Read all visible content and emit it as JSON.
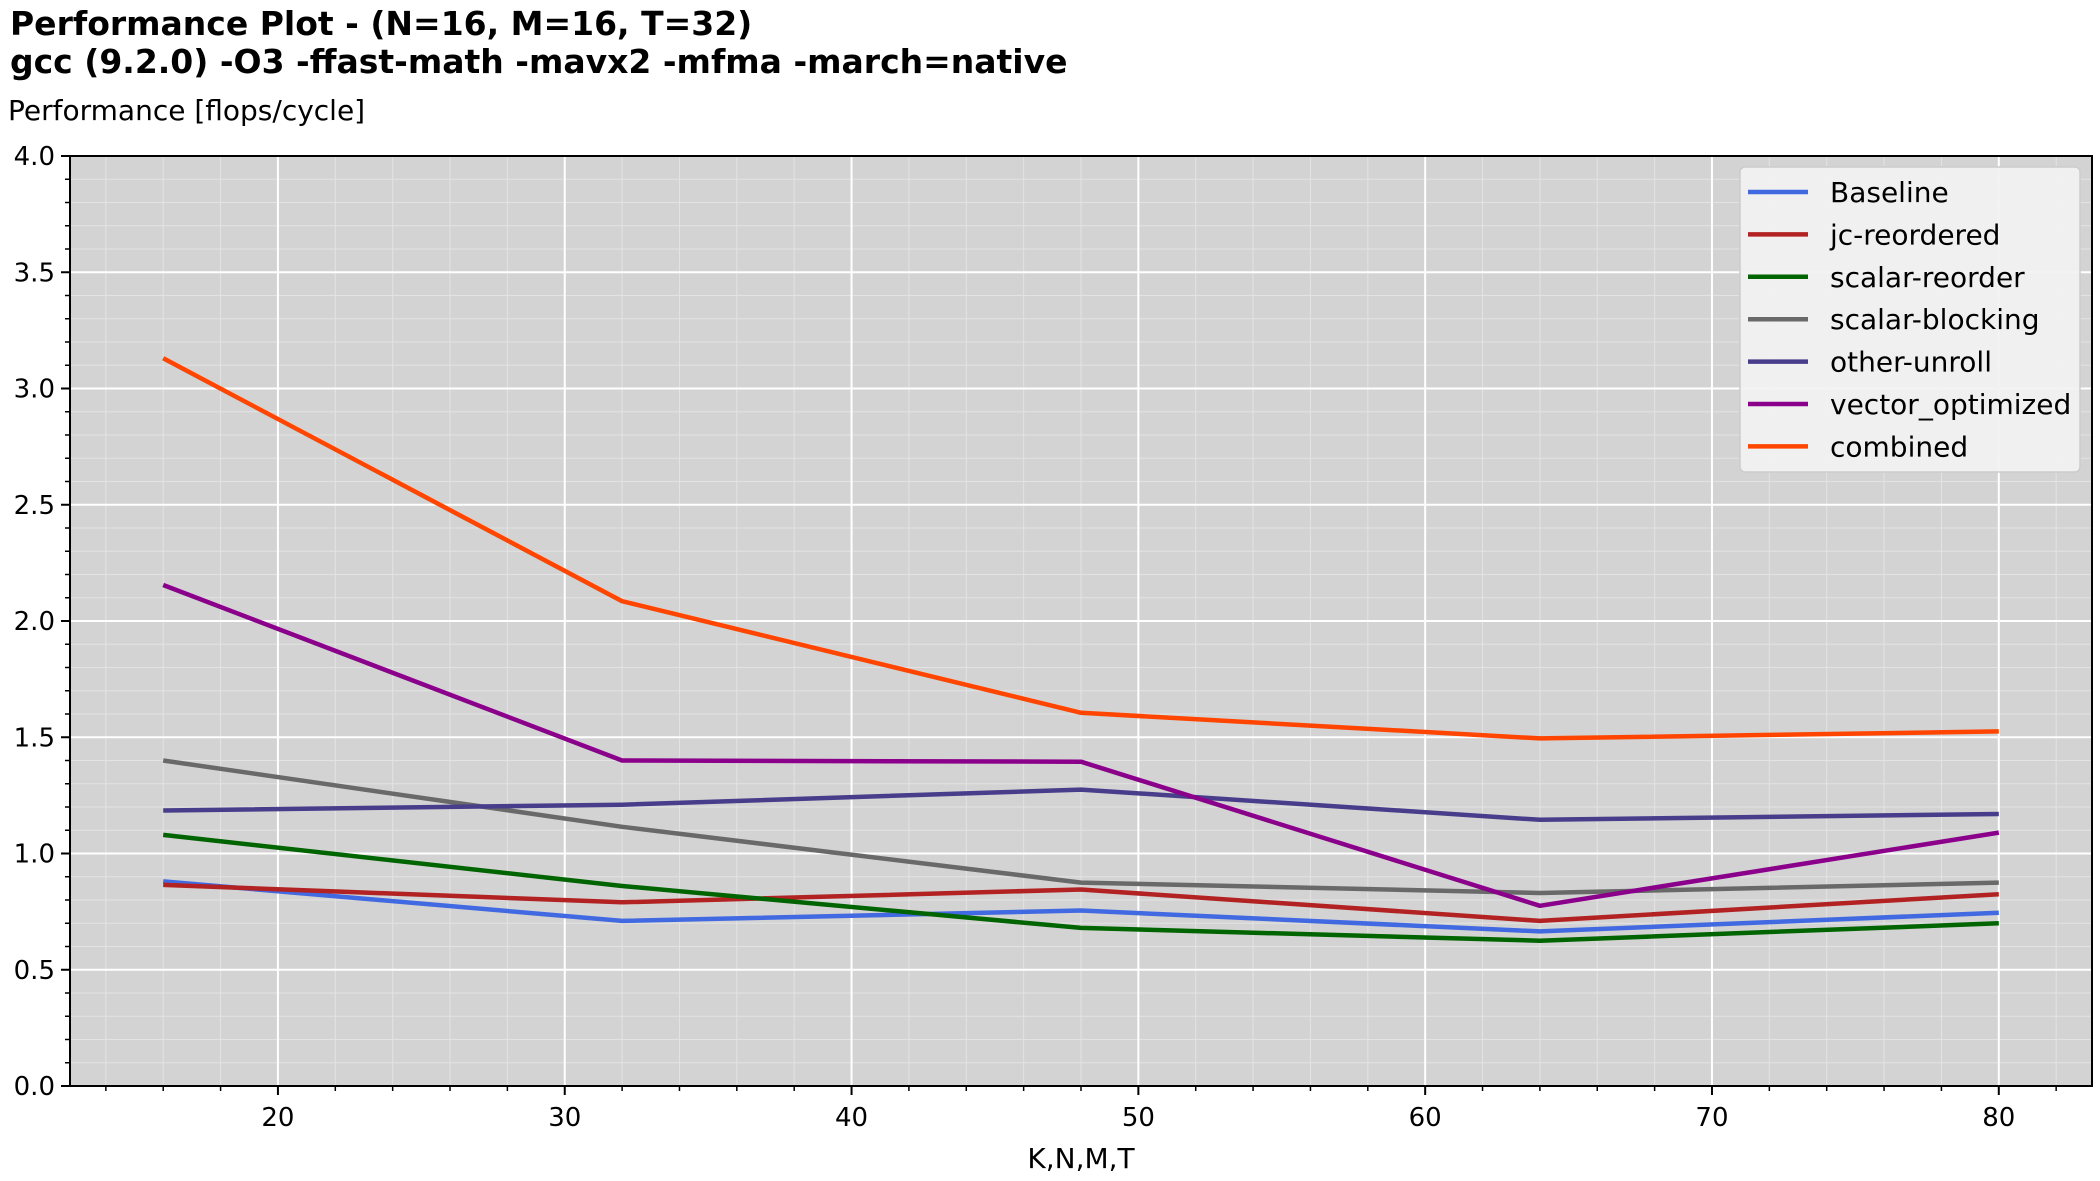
{
  "chart_data": {
    "type": "line",
    "title": "Performance Plot  -  (N=16, M=16, T=32)",
    "subtitle": "gcc (9.2.0) -O3 -ffast-math -mavx2 -mfma -march=native",
    "ylabel": "Performance [flops/cycle]",
    "xlabel": "K,N,M,T",
    "xlim": [
      12.75,
      83.25
    ],
    "ylim": [
      0.0,
      4.0
    ],
    "xticks": [
      20,
      30,
      40,
      50,
      60,
      70,
      80
    ],
    "yticks": [
      0.0,
      0.5,
      1.0,
      1.5,
      2.0,
      2.5,
      3.0,
      3.5,
      4.0
    ],
    "xtick_labels": [
      "20",
      "30",
      "40",
      "50",
      "60",
      "70",
      "80"
    ],
    "ytick_labels": [
      "0.0",
      "0.5",
      "1.0",
      "1.5",
      "2.0",
      "2.5",
      "3.0",
      "3.5",
      "4.0"
    ],
    "grid": true,
    "legend_position": "top-right",
    "x": [
      16,
      32,
      48,
      64,
      80
    ],
    "series": [
      {
        "name": "Baseline",
        "color": "#4169e1",
        "values": [
          0.88,
          0.71,
          0.755,
          0.665,
          0.745
        ]
      },
      {
        "name": "jc-reordered",
        "color": "#b22222",
        "values": [
          0.865,
          0.79,
          0.845,
          0.71,
          0.825
        ]
      },
      {
        "name": "scalar-reorder",
        "color": "#006400",
        "values": [
          1.08,
          0.86,
          0.68,
          0.625,
          0.7
        ]
      },
      {
        "name": "scalar-blocking",
        "color": "#696969",
        "values": [
          1.4,
          1.115,
          0.875,
          0.83,
          0.875
        ]
      },
      {
        "name": "other-unroll",
        "color": "#483d8b",
        "values": [
          1.185,
          1.21,
          1.275,
          1.145,
          1.17
        ]
      },
      {
        "name": "vector_optimized",
        "color": "#8b008b",
        "values": [
          2.155,
          1.4,
          1.395,
          0.775,
          1.09
        ]
      },
      {
        "name": "combined",
        "color": "#ff4500",
        "values": [
          3.13,
          2.085,
          1.605,
          1.495,
          1.525
        ]
      }
    ]
  }
}
